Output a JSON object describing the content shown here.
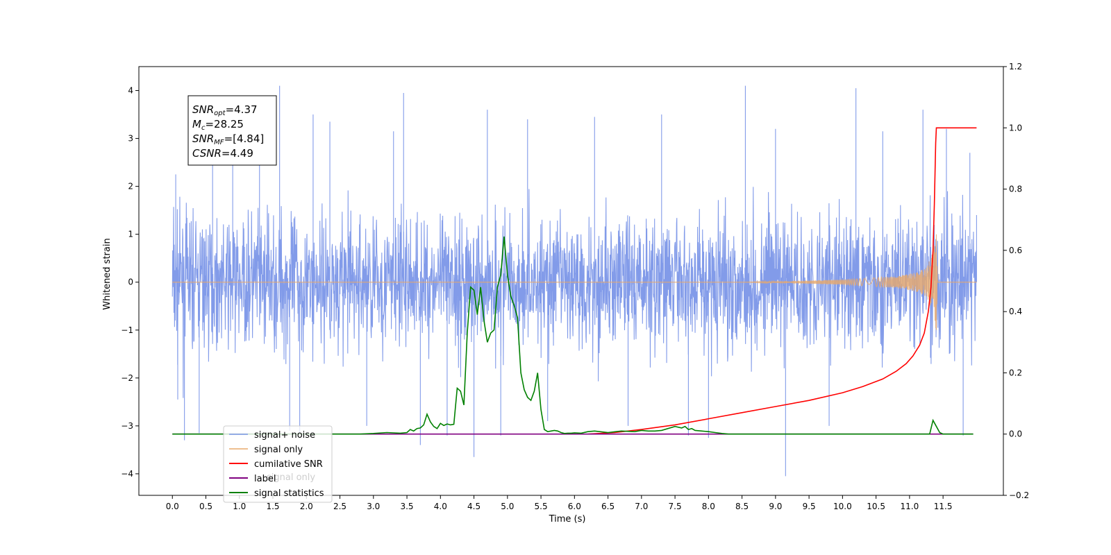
{
  "chart_data": {
    "type": "line",
    "xlabel": "Time (s)",
    "ylabel": "Whitened strain",
    "xlim": [
      -0.5,
      12.4
    ],
    "ylim": [
      -4.45,
      4.5
    ],
    "y2lim": [
      -0.2,
      1.2
    ],
    "x_ticks": [
      "0.0",
      "0.5",
      "1.0",
      "1.5",
      "2.0",
      "2.5",
      "3.0",
      "3.5",
      "4.0",
      "4.5",
      "5.0",
      "5.5",
      "6.0",
      "6.5",
      "7.0",
      "7.5",
      "8.0",
      "8.5",
      "9.0",
      "9.5",
      "10.0",
      "10.5",
      "11.0",
      "11.5"
    ],
    "y_ticks": [
      "−4",
      "−3",
      "−2",
      "−1",
      "0",
      "1",
      "2",
      "3",
      "4"
    ],
    "y2_ticks": [
      "−0.2",
      "0.0",
      "0.2",
      "0.4",
      "0.6",
      "0.8",
      "1.0",
      "1.2"
    ],
    "legend_placement": "lower-left",
    "legend": [
      "signal+ noise",
      "signal only",
      "cumilative SNR",
      "label",
      "signal statistics"
    ],
    "legend_overlap_text": "signal only",
    "annotation": [
      {
        "sym": "SNR",
        "sub": "opt",
        "value": "=4.37"
      },
      {
        "sym": "M",
        "sub": "c",
        "value": "=28.25"
      },
      {
        "sym": "SNR",
        "sub": "MF",
        "value": "=[4.84]"
      },
      {
        "sym": "CSNR",
        "sub": "",
        "value": "=4.49"
      }
    ],
    "series": [
      {
        "name": "signal+ noise",
        "color": "#7b96e8",
        "axis": "left",
        "x_range": [
          0.0,
          12.0
        ],
        "envelope": "approx. ±2.5, spikes to 4.1 / −4.05",
        "spikes": [
          [
            0.05,
            2.25
          ],
          [
            0.08,
            -2.45
          ],
          [
            0.18,
            -3.3
          ],
          [
            0.4,
            -3.15
          ],
          [
            0.6,
            2.9
          ],
          [
            0.9,
            3.25
          ],
          [
            1.3,
            3.0
          ],
          [
            1.6,
            4.1
          ],
          [
            1.75,
            -3.1
          ],
          [
            1.9,
            -3.15
          ],
          [
            2.1,
            3.5
          ],
          [
            2.35,
            3.35
          ],
          [
            2.9,
            -3.0
          ],
          [
            3.3,
            3.15
          ],
          [
            3.45,
            3.95
          ],
          [
            3.7,
            -3.4
          ],
          [
            4.1,
            -3.2
          ],
          [
            4.5,
            -3.65
          ],
          [
            4.7,
            3.6
          ],
          [
            4.9,
            -3.2
          ],
          [
            5.3,
            3.4
          ],
          [
            5.6,
            -2.9
          ],
          [
            6.3,
            3.45
          ],
          [
            6.8,
            -3.0
          ],
          [
            7.3,
            3.5
          ],
          [
            7.7,
            -3.2
          ],
          [
            8.0,
            -3.25
          ],
          [
            8.55,
            4.1
          ],
          [
            9.0,
            3.2
          ],
          [
            9.15,
            -4.05
          ],
          [
            9.8,
            -3.0
          ],
          [
            10.2,
            4.05
          ],
          [
            10.6,
            3.15
          ],
          [
            11.2,
            3.6
          ],
          [
            11.55,
            3.2
          ],
          [
            11.8,
            -3.2
          ],
          [
            11.9,
            2.7
          ],
          [
            12.0,
            1.4
          ]
        ]
      },
      {
        "name": "signal only",
        "color": "#e8a96a",
        "axis": "left",
        "points": [
          [
            0.0,
            0.0
          ],
          [
            8.5,
            0.0
          ],
          [
            10.0,
            0.05
          ],
          [
            10.8,
            0.12
          ],
          [
            11.1,
            0.2
          ],
          [
            11.25,
            0.3
          ],
          [
            11.35,
            0.62
          ],
          [
            11.4,
            1.05
          ],
          [
            11.42,
            0.0
          ],
          [
            12.0,
            0.0
          ]
        ],
        "note": "chirp with growing amplitude near 11.4 s"
      },
      {
        "name": "cumilative SNR",
        "color": "#ff0000",
        "axis": "right",
        "x": [
          6.2,
          6.6,
          7.0,
          7.5,
          8.0,
          8.5,
          9.0,
          9.5,
          10.0,
          10.3,
          10.6,
          10.8,
          10.95,
          11.05,
          11.15,
          11.22,
          11.28,
          11.32,
          11.35,
          11.37,
          11.39,
          11.4,
          11.6,
          11.8,
          11.9,
          12.0
        ],
        "values": [
          0.0,
          0.005,
          0.015,
          0.03,
          0.05,
          0.07,
          0.09,
          0.11,
          0.135,
          0.155,
          0.18,
          0.205,
          0.23,
          0.255,
          0.29,
          0.33,
          0.4,
          0.48,
          0.6,
          0.75,
          0.95,
          1.0,
          1.0,
          1.0,
          1.0,
          1.0
        ]
      },
      {
        "name": "label",
        "color": "#800080",
        "axis": "right",
        "x": [
          0.0,
          11.95
        ],
        "values": [
          0.0,
          0.0
        ]
      },
      {
        "name": "signal statistics",
        "color": "#008000",
        "axis": "right",
        "x": [
          0.0,
          2.8,
          3.0,
          3.2,
          3.4,
          3.5,
          3.55,
          3.6,
          3.65,
          3.7,
          3.75,
          3.8,
          3.85,
          3.9,
          3.95,
          4.0,
          4.05,
          4.1,
          4.15,
          4.2,
          4.25,
          4.3,
          4.35,
          4.4,
          4.45,
          4.5,
          4.55,
          4.6,
          4.65,
          4.7,
          4.75,
          4.8,
          4.85,
          4.9,
          4.95,
          5.0,
          5.05,
          5.1,
          5.15,
          5.2,
          5.25,
          5.3,
          5.35,
          5.4,
          5.45,
          5.5,
          5.55,
          5.6,
          5.65,
          5.7,
          5.75,
          5.8,
          5.85,
          5.9,
          5.95,
          6.0,
          6.1,
          6.2,
          6.3,
          6.5,
          6.7,
          6.9,
          7.0,
          7.1,
          7.2,
          7.3,
          7.5,
          7.6,
          7.65,
          7.7,
          7.75,
          7.8,
          7.9,
          8.0,
          8.1,
          8.2,
          8.3,
          8.35,
          8.5,
          9.0,
          10.0,
          11.0,
          11.3,
          11.35,
          11.4,
          11.45,
          11.5,
          11.6,
          11.95
        ],
        "values": [
          0.0,
          0.0,
          0.002,
          0.005,
          0.003,
          0.005,
          0.015,
          0.01,
          0.018,
          0.02,
          0.03,
          0.065,
          0.04,
          0.025,
          0.018,
          0.035,
          0.028,
          0.033,
          0.03,
          0.032,
          0.15,
          0.14,
          0.095,
          0.33,
          0.48,
          0.47,
          0.39,
          0.48,
          0.37,
          0.3,
          0.33,
          0.34,
          0.48,
          0.52,
          0.645,
          0.52,
          0.45,
          0.42,
          0.38,
          0.2,
          0.145,
          0.12,
          0.11,
          0.14,
          0.2,
          0.08,
          0.015,
          0.008,
          0.01,
          0.012,
          0.01,
          0.005,
          0.002,
          0.003,
          0.003,
          0.004,
          0.003,
          0.008,
          0.01,
          0.005,
          0.01,
          0.008,
          0.012,
          0.01,
          0.01,
          0.012,
          0.025,
          0.02,
          0.025,
          0.015,
          0.018,
          0.012,
          0.01,
          0.008,
          0.005,
          0.002,
          0.0,
          0.0,
          0.0,
          0.0,
          0.0,
          0.0,
          0.0,
          0.045,
          0.025,
          0.005,
          0.0,
          0.0,
          0.0
        ]
      }
    ]
  }
}
